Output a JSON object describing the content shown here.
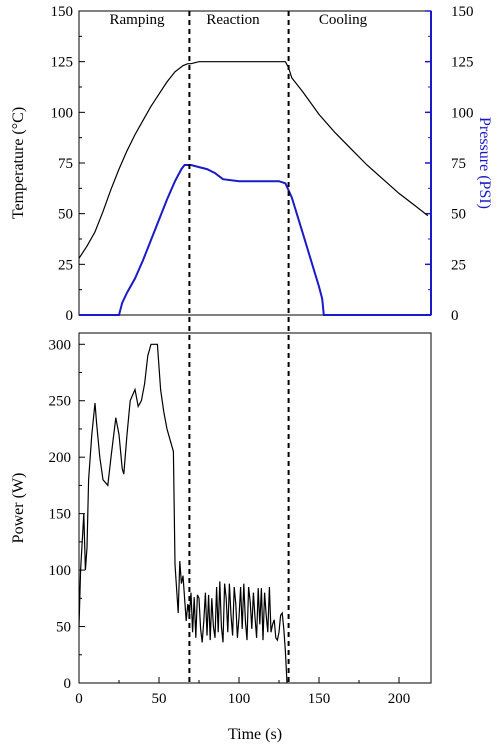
{
  "colors": {
    "temperature": "#000000",
    "pressure": "#1a1ac8",
    "power": "#000000"
  },
  "chart_data": [
    {
      "type": "line",
      "panel": "top",
      "phase_labels": [
        "Ramping",
        "Reaction",
        "Cooling"
      ],
      "phase_boundaries_s": [
        69,
        131
      ],
      "xlim": [
        0,
        220
      ],
      "ylabel": "Temperature (°C)",
      "ylim": [
        0,
        150
      ],
      "yticks": [
        "0",
        "25",
        "50",
        "75",
        "100",
        "125",
        "150"
      ],
      "y2label": "Pressure (PSI)",
      "y2lim": [
        0,
        150
      ],
      "y2ticks": [
        "0",
        "25",
        "50",
        "75",
        "100",
        "125",
        "150"
      ],
      "series": [
        {
          "axis": "left",
          "x": [
            0,
            5,
            10,
            15,
            20,
            25,
            30,
            35,
            40,
            45,
            50,
            55,
            60,
            65,
            68,
            70,
            75,
            80,
            90,
            100,
            110,
            120,
            129,
            131,
            133,
            140,
            150,
            160,
            170,
            180,
            190,
            200,
            210,
            218
          ],
          "values": [
            28,
            34,
            41,
            51,
            62,
            72,
            81,
            89,
            96,
            103,
            109,
            115,
            120,
            123,
            124,
            124,
            125,
            125,
            125,
            125,
            125,
            125,
            125,
            122,
            117,
            110,
            99,
            90,
            82,
            74,
            67,
            60,
            54,
            49
          ]
        },
        {
          "axis": "right",
          "x": [
            0,
            25,
            27,
            30,
            35,
            40,
            45,
            50,
            55,
            60,
            64,
            66,
            70,
            75,
            80,
            85,
            90,
            100,
            110,
            120,
            125,
            129,
            133,
            140,
            145,
            150,
            152,
            153,
            220
          ],
          "values": [
            0,
            0,
            6,
            11,
            18,
            27,
            37,
            47,
            57,
            66,
            72,
            74,
            74,
            73,
            72,
            70,
            67,
            66,
            66,
            66,
            66,
            65,
            58,
            40,
            27,
            14,
            8,
            0,
            0
          ]
        }
      ]
    },
    {
      "type": "line",
      "panel": "bottom",
      "xlabel": "Time (s)",
      "xlim": [
        0,
        220
      ],
      "xticks": [
        "0",
        "50",
        "100",
        "150",
        "200"
      ],
      "ylabel": "Power (W)",
      "ylim": [
        0,
        310
      ],
      "yticks": [
        "0",
        "50",
        "100",
        "150",
        "200",
        "250",
        "300"
      ],
      "series": [
        {
          "x": [
            0,
            1,
            3,
            4,
            5,
            6,
            8,
            10,
            11,
            13,
            15,
            18,
            20,
            23,
            25,
            27,
            28,
            30,
            32,
            35,
            37,
            39,
            41,
            43,
            45,
            47,
            49,
            51,
            53,
            55,
            57,
            59,
            60,
            62,
            63,
            64,
            65,
            66,
            67,
            68,
            69,
            70,
            71,
            72,
            73,
            74,
            75,
            76,
            77,
            78,
            79,
            80,
            81,
            82,
            83,
            84,
            85,
            86,
            87,
            88,
            89,
            90,
            91,
            92,
            93,
            94,
            95,
            96,
            97,
            98,
            99,
            100,
            101,
            102,
            103,
            104,
            105,
            106,
            107,
            108,
            109,
            110,
            111,
            112,
            113,
            114,
            115,
            116,
            117,
            118,
            119,
            120,
            121,
            122,
            123,
            124,
            125,
            126,
            127,
            128,
            129,
            130
          ],
          "values": [
            50,
            100,
            150,
            100,
            120,
            180,
            220,
            248,
            230,
            200,
            180,
            175,
            200,
            235,
            220,
            190,
            185,
            220,
            250,
            260,
            245,
            250,
            265,
            290,
            300,
            300,
            300,
            260,
            240,
            225,
            215,
            205,
            105,
            62,
            108,
            88,
            95,
            75,
            55,
            70,
            60,
            80,
            45,
            76,
            40,
            78,
            75,
            48,
            36,
            55,
            80,
            42,
            78,
            38,
            75,
            50,
            40,
            85,
            45,
            90,
            50,
            36,
            88,
            75,
            45,
            88,
            60,
            42,
            85,
            70,
            40,
            58,
            85,
            48,
            88,
            55,
            38,
            85,
            72,
            48,
            80,
            58,
            40,
            84,
            52,
            84,
            38,
            80,
            60,
            45,
            85,
            45,
            52,
            56,
            40,
            38,
            45,
            60,
            62,
            48,
            28,
            0
          ]
        }
      ]
    }
  ]
}
